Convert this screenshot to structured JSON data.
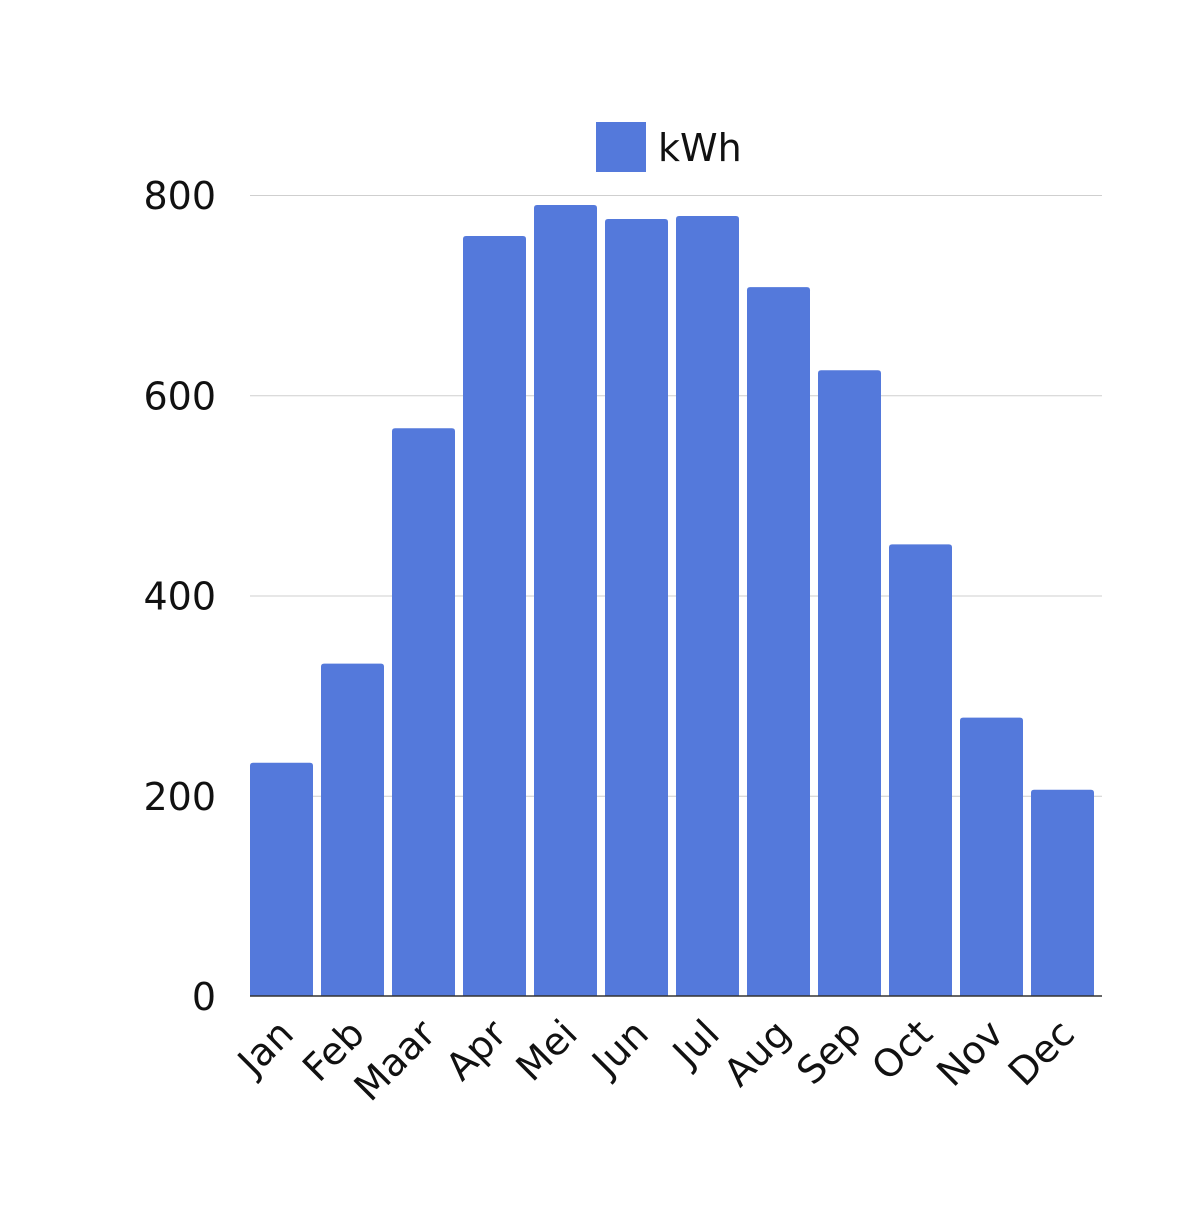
{
  "chart_data": {
    "type": "bar",
    "categories": [
      "Jan",
      "Feb",
      "Maar",
      "Apr",
      "Mei",
      "Jun",
      "Jul",
      "Aug",
      "Sep",
      "Oct",
      "Nov",
      "Dec"
    ],
    "series": [
      {
        "name": "kWh",
        "color": "#5479DB",
        "values": [
          233,
          332,
          567,
          759,
          790,
          776,
          779,
          708,
          625,
          451,
          278,
          206
        ]
      }
    ],
    "ylim": [
      0,
      800
    ],
    "y_ticks": [
      0,
      200,
      400,
      600,
      800
    ],
    "y_tick_labels": [
      "0",
      "200",
      "400",
      "600",
      "800"
    ],
    "grid": true,
    "legend_position": "top-center",
    "x_tick_rotation": "45-degree"
  }
}
